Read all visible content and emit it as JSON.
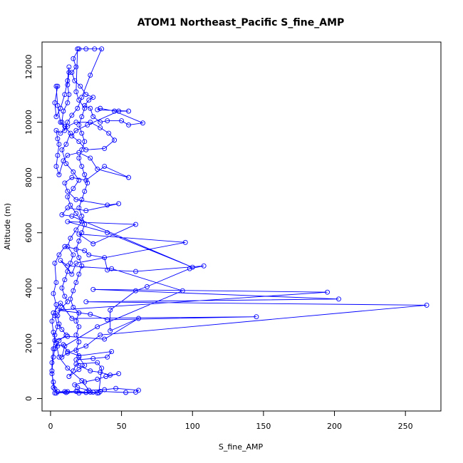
{
  "chart_data": {
    "type": "line",
    "title": "ATOM1 Northeast_Pacific S_fine_AMP",
    "xlabel": "S_fine_AMP",
    "ylabel": "Altitude (m)",
    "xlim": [
      -6,
      275
    ],
    "ylim": [
      -450,
      12900
    ],
    "x_ticks": [
      0,
      50,
      100,
      150,
      200,
      250
    ],
    "y_ticks": [
      0,
      2000,
      4000,
      6000,
      8000,
      10000,
      12000
    ],
    "grid": false,
    "legend": "none",
    "series_color": "#0000ff",
    "marker": "open-circle",
    "series": [
      {
        "points": [
          [
            3,
            200
          ],
          [
            12,
            250
          ],
          [
            20,
            200
          ],
          [
            33,
            200
          ],
          [
            35,
            260
          ],
          [
            53,
            220
          ],
          [
            60,
            230
          ],
          [
            62,
            300
          ],
          [
            46,
            370
          ],
          [
            38,
            320
          ],
          [
            27,
            300
          ],
          [
            19,
            400
          ],
          [
            17,
            500
          ],
          [
            24,
            600
          ],
          [
            33,
            700
          ],
          [
            39,
            800
          ],
          [
            48,
            900
          ],
          [
            42,
            850
          ],
          [
            35,
            950
          ],
          [
            28,
            1000
          ],
          [
            20,
            1200
          ],
          [
            18,
            1400
          ],
          [
            30,
            1450
          ],
          [
            40,
            1500
          ],
          [
            43,
            1700
          ],
          [
            20,
            1550
          ],
          [
            12,
            1700
          ],
          [
            9,
            1950
          ],
          [
            5,
            1900
          ],
          [
            3,
            2100
          ],
          [
            12,
            2250
          ],
          [
            38,
            2150
          ],
          [
            62,
            2900
          ],
          [
            42,
            2450
          ],
          [
            42,
            3200
          ],
          [
            60,
            3900
          ],
          [
            68,
            4050
          ],
          [
            98,
            4700
          ],
          [
            108,
            4800
          ],
          [
            60,
            4600
          ],
          [
            40,
            4650
          ],
          [
            38,
            5100
          ],
          [
            27,
            5200
          ],
          [
            24,
            5350
          ],
          [
            10,
            5500
          ],
          [
            6,
            5200
          ],
          [
            3,
            4900
          ],
          [
            4,
            4200
          ],
          [
            2,
            3800
          ],
          [
            4,
            3400
          ],
          [
            3,
            3000
          ],
          [
            5,
            2600
          ],
          [
            3,
            2300
          ],
          [
            2,
            1800
          ],
          [
            1,
            1300
          ],
          [
            1,
            900
          ],
          [
            2,
            600
          ],
          [
            3,
            350
          ],
          [
            4,
            200
          ],
          [
            11,
            220
          ],
          [
            28,
            230
          ],
          [
            22,
            650
          ],
          [
            12,
            1100
          ],
          [
            6,
            1500
          ],
          [
            4,
            2000
          ],
          [
            2,
            2400
          ],
          [
            1,
            2800
          ],
          [
            2,
            3100
          ],
          [
            7,
            3450
          ],
          [
            15,
            2900
          ],
          [
            145,
            2960
          ],
          [
            40,
            2850
          ],
          [
            28,
            3050
          ],
          [
            5,
            3200
          ],
          [
            195,
            3850
          ],
          [
            30,
            3950
          ],
          [
            203,
            3600
          ],
          [
            25,
            3500
          ],
          [
            265,
            3380
          ],
          [
            35,
            2300
          ],
          [
            25,
            1900
          ],
          [
            12,
            1650
          ],
          [
            8,
            1500
          ],
          [
            10,
            1900
          ],
          [
            33,
            2600
          ],
          [
            93,
            3900
          ],
          [
            43,
            4700
          ],
          [
            12,
            4800
          ],
          [
            7,
            5000
          ],
          [
            15,
            4500
          ],
          [
            18,
            4900
          ],
          [
            95,
            5650
          ],
          [
            20,
            5950
          ],
          [
            30,
            5600
          ],
          [
            60,
            6300
          ],
          [
            12,
            6400
          ],
          [
            40,
            6000
          ],
          [
            100,
            4750
          ],
          [
            15,
            6600
          ],
          [
            8,
            6650
          ],
          [
            12,
            6900
          ],
          [
            25,
            6800
          ],
          [
            48,
            7050
          ],
          [
            40,
            7000
          ],
          [
            18,
            7200
          ],
          [
            12,
            7500
          ],
          [
            10,
            7800
          ],
          [
            15,
            8000
          ],
          [
            25,
            7900
          ],
          [
            38,
            8400
          ],
          [
            55,
            8000
          ],
          [
            33,
            8300
          ],
          [
            28,
            8700
          ],
          [
            20,
            8900
          ],
          [
            12,
            8800
          ],
          [
            9,
            8600
          ],
          [
            6,
            8100
          ],
          [
            4,
            8400
          ],
          [
            5,
            8800
          ],
          [
            6,
            9200
          ],
          [
            5,
            9400
          ],
          [
            4,
            9700
          ],
          [
            7,
            9600
          ],
          [
            12,
            9850
          ],
          [
            18,
            10000
          ],
          [
            28,
            10000
          ],
          [
            35,
            9800
          ],
          [
            41,
            9600
          ],
          [
            45,
            9350
          ],
          [
            38,
            9050
          ],
          [
            25,
            9000
          ],
          [
            20,
            9300
          ],
          [
            15,
            9500
          ],
          [
            18,
            9700
          ],
          [
            26,
            9900
          ],
          [
            48,
            10400
          ],
          [
            55,
            10400
          ],
          [
            33,
            10450
          ],
          [
            35,
            10500
          ],
          [
            45,
            10400
          ],
          [
            65,
            9970
          ],
          [
            55,
            9900
          ],
          [
            50,
            10050
          ],
          [
            40,
            10050
          ],
          [
            35,
            10000
          ],
          [
            30,
            10200
          ],
          [
            28,
            10500
          ],
          [
            24,
            10600
          ],
          [
            27,
            10800
          ],
          [
            30,
            10900
          ],
          [
            25,
            11000
          ],
          [
            21,
            11300
          ],
          [
            17,
            11500
          ],
          [
            15,
            11800
          ],
          [
            18,
            12000
          ],
          [
            16,
            12300
          ],
          [
            20,
            12650
          ],
          [
            25,
            12650
          ],
          [
            31,
            12650
          ],
          [
            36,
            12650
          ],
          [
            28,
            11700
          ],
          [
            22,
            10900
          ],
          [
            19,
            10500
          ],
          [
            15,
            10250
          ],
          [
            12,
            10000
          ],
          [
            10,
            9700
          ],
          [
            8,
            10000
          ],
          [
            9,
            10400
          ],
          [
            12,
            10700
          ],
          [
            13,
            11000
          ],
          [
            12,
            11350
          ],
          [
            13,
            11800
          ],
          [
            13,
            12000
          ],
          [
            12,
            11500
          ],
          [
            10,
            11000
          ],
          [
            7,
            10500
          ],
          [
            4,
            10200
          ],
          [
            3,
            10700
          ],
          [
            5,
            11300
          ],
          [
            4,
            11300
          ],
          [
            5,
            10600
          ],
          [
            7,
            10000
          ],
          [
            10,
            9850
          ],
          [
            14,
            9600
          ],
          [
            11,
            9200
          ],
          [
            8,
            9000
          ],
          [
            11,
            8500
          ],
          [
            16,
            8200
          ],
          [
            20,
            7900
          ],
          [
            16,
            7600
          ],
          [
            12,
            7300
          ],
          [
            14,
            7000
          ],
          [
            18,
            6700
          ],
          [
            22,
            6400
          ],
          [
            18,
            6100
          ],
          [
            14,
            5800
          ],
          [
            12,
            5500
          ],
          [
            16,
            5200
          ],
          [
            14,
            4900
          ],
          [
            12,
            4600
          ],
          [
            10,
            4300
          ],
          [
            8,
            4000
          ],
          [
            10,
            3700
          ],
          [
            12,
            3500
          ],
          [
            8,
            3300
          ],
          [
            5,
            3000
          ],
          [
            6,
            2700
          ],
          [
            8,
            2500
          ],
          [
            11,
            2300
          ],
          [
            6,
            2100
          ],
          [
            3,
            1800
          ],
          [
            2,
            1500
          ],
          [
            1,
            1000
          ],
          [
            2,
            400
          ],
          [
            5,
            250
          ],
          [
            10,
            250
          ],
          [
            18,
            260
          ],
          [
            19,
            270
          ],
          [
            25,
            220
          ],
          [
            30,
            230
          ],
          [
            34,
            210
          ],
          [
            36,
            1100
          ],
          [
            33,
            1300
          ],
          [
            18,
            1250
          ],
          [
            16,
            1000
          ],
          [
            13,
            800
          ],
          [
            20,
            1050
          ],
          [
            24,
            1200
          ],
          [
            20,
            1500
          ],
          [
            18,
            1750
          ],
          [
            20,
            2050
          ],
          [
            18,
            2300
          ],
          [
            20,
            2600
          ],
          [
            18,
            2800
          ],
          [
            20,
            3100
          ],
          [
            16,
            3300
          ],
          [
            14,
            3600
          ],
          [
            16,
            3900
          ],
          [
            18,
            4200
          ],
          [
            20,
            4500
          ],
          [
            22,
            4800
          ],
          [
            20,
            5100
          ],
          [
            18,
            5400
          ],
          [
            20,
            5700
          ],
          [
            22,
            6000
          ],
          [
            24,
            6300
          ],
          [
            22,
            6600
          ],
          [
            20,
            6900
          ],
          [
            22,
            7200
          ],
          [
            24,
            7500
          ],
          [
            26,
            7800
          ],
          [
            24,
            8100
          ],
          [
            22,
            8400
          ],
          [
            20,
            8700
          ],
          [
            22,
            9000
          ],
          [
            24,
            9300
          ],
          [
            22,
            9600
          ],
          [
            20,
            9900
          ],
          [
            22,
            10200
          ],
          [
            24,
            10500
          ],
          [
            20,
            10800
          ],
          [
            18,
            11100
          ],
          [
            19,
            12650
          ]
        ]
      }
    ]
  }
}
